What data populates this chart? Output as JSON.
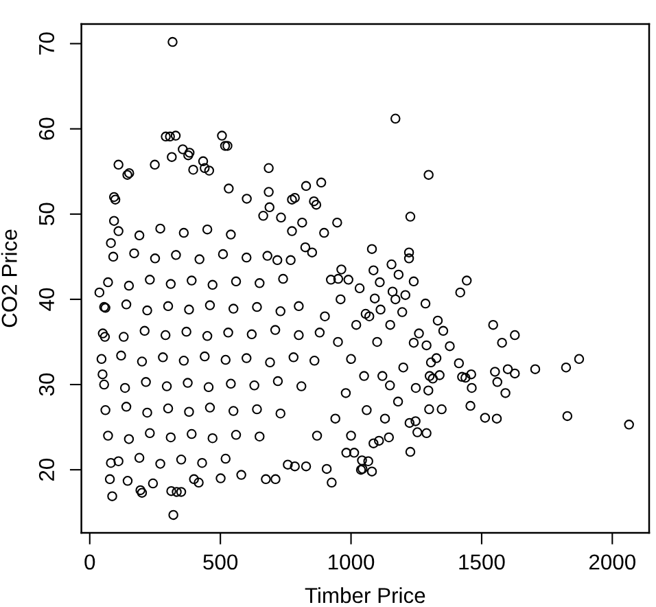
{
  "chart_data": {
    "type": "scatter",
    "xlabel": "Timber Price",
    "ylabel": "CO2 Price",
    "color": "#000000",
    "marker": "circle",
    "xlim": [
      -32,
      2141
    ],
    "ylim": [
      12.6,
      72.3
    ],
    "xticks": [
      0,
      500,
      1000,
      1500,
      2000
    ],
    "yticks": [
      20,
      30,
      40,
      50,
      60,
      70
    ],
    "x": [
      110,
      190,
      270,
      360,
      450,
      540,
      90,
      170,
      250,
      330,
      420,
      510,
      600,
      680,
      70,
      150,
      230,
      310,
      390,
      470,
      560,
      650,
      740,
      60,
      140,
      220,
      300,
      380,
      460,
      550,
      640,
      730,
      800,
      50,
      130,
      210,
      290,
      370,
      450,
      530,
      620,
      710,
      800,
      880,
      45,
      120,
      200,
      280,
      360,
      440,
      520,
      600,
      690,
      780,
      860,
      55,
      135,
      215,
      295,
      375,
      455,
      540,
      630,
      720,
      810,
      60,
      140,
      220,
      300,
      380,
      460,
      550,
      640,
      730,
      70,
      150,
      230,
      310,
      390,
      470,
      560,
      650,
      110,
      190,
      270,
      350,
      430,
      520,
      900,
      950,
      1000,
      980,
      1020,
      940,
      1050,
      870,
      1100,
      1120,
      1180,
      1130,
      1000,
      1060,
      1200,
      1260,
      1150,
      960,
      1070,
      1110,
      317,
      291,
      307,
      329,
      506,
      518,
      527,
      356,
      382,
      377,
      314,
      110,
      434,
      457,
      440,
      396,
      685,
      249,
      144,
      151,
      828,
      886,
      685,
      532,
      601,
      774,
      785,
      688,
      858,
      867,
      732,
      813,
      947,
      897,
      774,
      664,
      93,
      81,
      93,
      98,
      825,
      851,
      963,
      923,
      951,
      990,
      769,
      718,
      1170,
      1297,
      1227,
      1080,
      1222,
      1222,
      1086,
      1155,
      1182,
      1240,
      1443,
      1418,
      1033,
      1159,
      1170,
      1208,
      1091,
      1285,
      1196,
      1113,
      1544,
      1627,
      1578,
      1332,
      1353,
      1378,
      1873,
      1823,
      1705,
      1600,
      1627,
      1551,
      1560,
      1591,
      1413,
      1460,
      1462,
      1425,
      1438,
      1457,
      1513,
      1558,
      1828,
      2064,
      1347,
      1299,
      1289,
      1227,
      1254,
      1080,
      1044,
      1066,
      1145,
      1107,
      1086,
      1301,
      1339,
      1313,
      1327,
      1306,
      1289,
      1240,
      1149,
      1296,
      1248,
      1224,
      1247,
      320,
      86,
      77,
      81,
      194,
      200,
      312,
      333,
      350,
      145,
      417,
      501,
      674,
      711,
      926,
      907,
      785,
      828,
      1038,
      982,
      1042,
      37,
      55,
      49,
      58,
      1056,
      1012,
      758,
      580,
      242,
      399
    ],
    "values": [
      48.0,
      47.5,
      48.3,
      47.8,
      48.2,
      47.6,
      45.0,
      45.4,
      44.8,
      45.2,
      44.7,
      45.3,
      44.9,
      45.1,
      42.0,
      41.6,
      42.3,
      41.8,
      42.2,
      41.7,
      42.1,
      41.9,
      42.4,
      39.0,
      39.4,
      38.7,
      39.2,
      38.8,
      39.3,
      38.9,
      39.1,
      38.6,
      39.2,
      36.0,
      35.6,
      36.3,
      35.8,
      36.2,
      35.7,
      36.1,
      35.9,
      36.4,
      35.8,
      36.1,
      33.0,
      33.4,
      32.7,
      33.2,
      32.8,
      33.3,
      32.9,
      33.1,
      32.6,
      33.2,
      32.8,
      30.0,
      29.6,
      30.3,
      29.8,
      30.2,
      29.7,
      30.1,
      29.9,
      30.4,
      29.8,
      27.0,
      27.4,
      26.7,
      27.2,
      26.8,
      27.3,
      26.9,
      27.1,
      26.6,
      24.0,
      23.6,
      24.3,
      23.8,
      24.2,
      23.7,
      24.1,
      23.9,
      21.0,
      21.4,
      20.7,
      21.2,
      20.8,
      21.3,
      38.0,
      35.0,
      33.0,
      29.0,
      37.0,
      26.0,
      31.0,
      24.0,
      35.0,
      31.0,
      28.0,
      26.0,
      24.0,
      27.0,
      32.0,
      36.0,
      37.0,
      40.0,
      38.0,
      42.0,
      70.2,
      59.1,
      59.1,
      59.2,
      59.2,
      58.0,
      58.0,
      57.6,
      57.2,
      56.9,
      56.7,
      55.8,
      56.2,
      55.1,
      55.4,
      55.2,
      55.4,
      55.8,
      54.6,
      54.8,
      53.3,
      53.7,
      52.6,
      53.0,
      51.8,
      51.7,
      51.9,
      50.8,
      51.5,
      51.1,
      49.6,
      49.0,
      49.0,
      47.8,
      48.0,
      49.8,
      49.2,
      46.6,
      52.0,
      51.7,
      46.1,
      45.5,
      43.5,
      42.3,
      42.4,
      42.3,
      44.6,
      44.6,
      61.2,
      54.6,
      49.7,
      45.9,
      45.5,
      44.8,
      43.4,
      44.1,
      42.9,
      42.1,
      42.2,
      40.8,
      41.3,
      40.9,
      40.0,
      40.5,
      40.1,
      39.5,
      38.5,
      38.8,
      37.0,
      35.8,
      34.9,
      37.5,
      36.3,
      34.5,
      33.0,
      32.0,
      31.8,
      31.8,
      31.3,
      31.5,
      30.3,
      29.0,
      32.5,
      31.2,
      29.6,
      30.9,
      30.8,
      27.5,
      26.1,
      26.0,
      26.3,
      25.3,
      27.1,
      27.1,
      24.3,
      22.1,
      24.4,
      19.8,
      20.1,
      21.0,
      23.8,
      23.4,
      23.1,
      31.0,
      31.1,
      30.7,
      33.1,
      32.6,
      34.6,
      34.9,
      29.9,
      29.3,
      29.6,
      25.5,
      25.7,
      14.7,
      16.9,
      18.9,
      20.8,
      17.6,
      17.3,
      17.5,
      17.4,
      17.4,
      18.7,
      18.5,
      19.0,
      18.9,
      18.9,
      18.5,
      20.1,
      20.4,
      20.4,
      20.0,
      22.0,
      21.1,
      40.8,
      39.1,
      31.2,
      35.6,
      38.3,
      22.0,
      20.6,
      19.4,
      18.4,
      18.9
    ]
  }
}
